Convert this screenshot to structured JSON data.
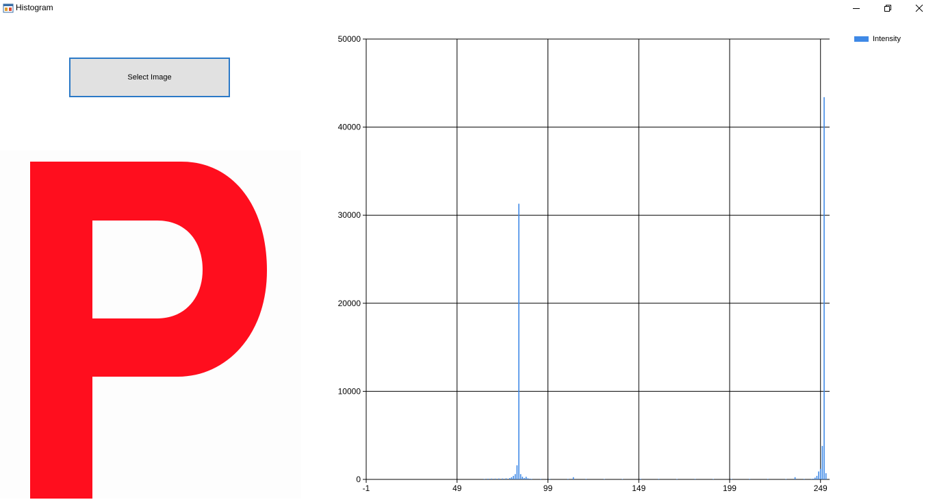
{
  "window": {
    "title": "Histogram",
    "icon": "form-icon",
    "controls": [
      "minimize-icon",
      "restore-icon",
      "close-icon"
    ]
  },
  "toolbar": {
    "select_label": "Select Image"
  },
  "picture": {
    "description_icon": "letter-p-image",
    "letter_color": "#ff0e1e"
  },
  "chart_data": {
    "type": "bar",
    "series": [
      {
        "name": "Intensity",
        "color": "#3f89e6",
        "x": [
          64,
          66,
          68,
          70,
          72,
          74,
          76,
          78,
          79,
          80,
          81,
          82,
          83,
          84,
          85,
          86,
          87,
          88,
          89,
          90,
          95,
          100,
          110,
          113,
          120,
          130,
          140,
          150,
          160,
          170,
          180,
          190,
          200,
          210,
          220,
          230,
          235,
          240,
          244,
          245,
          246,
          247,
          248,
          249,
          250,
          251,
          252,
          253
        ],
        "values": [
          60,
          80,
          90,
          90,
          100,
          100,
          120,
          150,
          250,
          400,
          600,
          1600,
          31300,
          600,
          300,
          150,
          300,
          120,
          80,
          60,
          60,
          60,
          60,
          250,
          60,
          50,
          50,
          60,
          60,
          50,
          60,
          50,
          50,
          60,
          60,
          50,
          250,
          60,
          60,
          80,
          200,
          400,
          900,
          1200,
          3800,
          43400,
          700,
          0
        ]
      }
    ],
    "xlim": [
      -1,
      254
    ],
    "ylim": [
      0,
      50000
    ],
    "xticks": [
      -1,
      49,
      99,
      149,
      199,
      249
    ],
    "yticks": [
      0,
      10000,
      20000,
      30000,
      40000,
      50000
    ],
    "xtick_labels": [
      "-1",
      "49",
      "99",
      "149",
      "199",
      "249"
    ],
    "ytick_labels": [
      "0",
      "10000",
      "20000",
      "30000",
      "40000",
      "50000"
    ],
    "grid": true,
    "legend": "top-right",
    "title": "",
    "xlabel": "",
    "ylabel": ""
  }
}
